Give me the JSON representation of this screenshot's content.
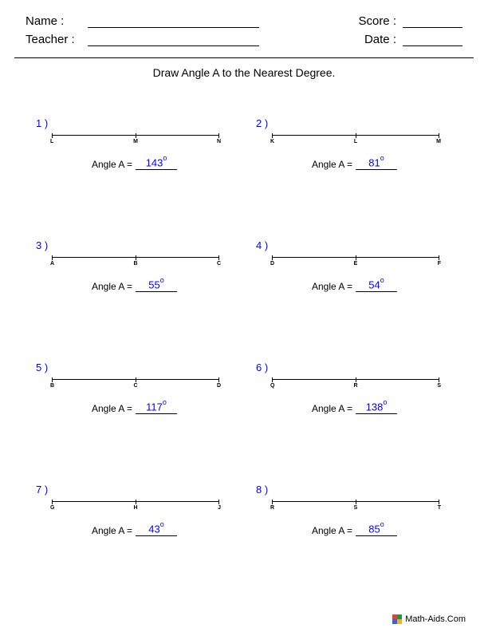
{
  "header": {
    "name_label": "Name :",
    "teacher_label": "Teacher :",
    "score_label": "Score :",
    "date_label": "Date :"
  },
  "instruction": "Draw Angle A to the Nearest Degree.",
  "answer_label": "Angle A  =",
  "degree_symbol": "o",
  "problems": [
    {
      "num": "1  )",
      "pts": [
        "L",
        "M",
        "N"
      ],
      "angle": "143"
    },
    {
      "num": "2  )",
      "pts": [
        "K",
        "L",
        "M"
      ],
      "angle": "81"
    },
    {
      "num": "3  )",
      "pts": [
        "A",
        "B",
        "C"
      ],
      "angle": "55"
    },
    {
      "num": "4  )",
      "pts": [
        "D",
        "E",
        "F"
      ],
      "angle": "54"
    },
    {
      "num": "5  )",
      "pts": [
        "B",
        "C",
        "D"
      ],
      "angle": "117"
    },
    {
      "num": "6  )",
      "pts": [
        "Q",
        "R",
        "S"
      ],
      "angle": "138"
    },
    {
      "num": "7  )",
      "pts": [
        "G",
        "H",
        "J"
      ],
      "angle": "43"
    },
    {
      "num": "8  )",
      "pts": [
        "R",
        "S",
        "T"
      ],
      "angle": "85"
    }
  ],
  "footer": {
    "text": "Math-Aids.Com"
  },
  "colors": {
    "text": "#000000",
    "accent": "#0000ff",
    "background": "#ffffff"
  }
}
